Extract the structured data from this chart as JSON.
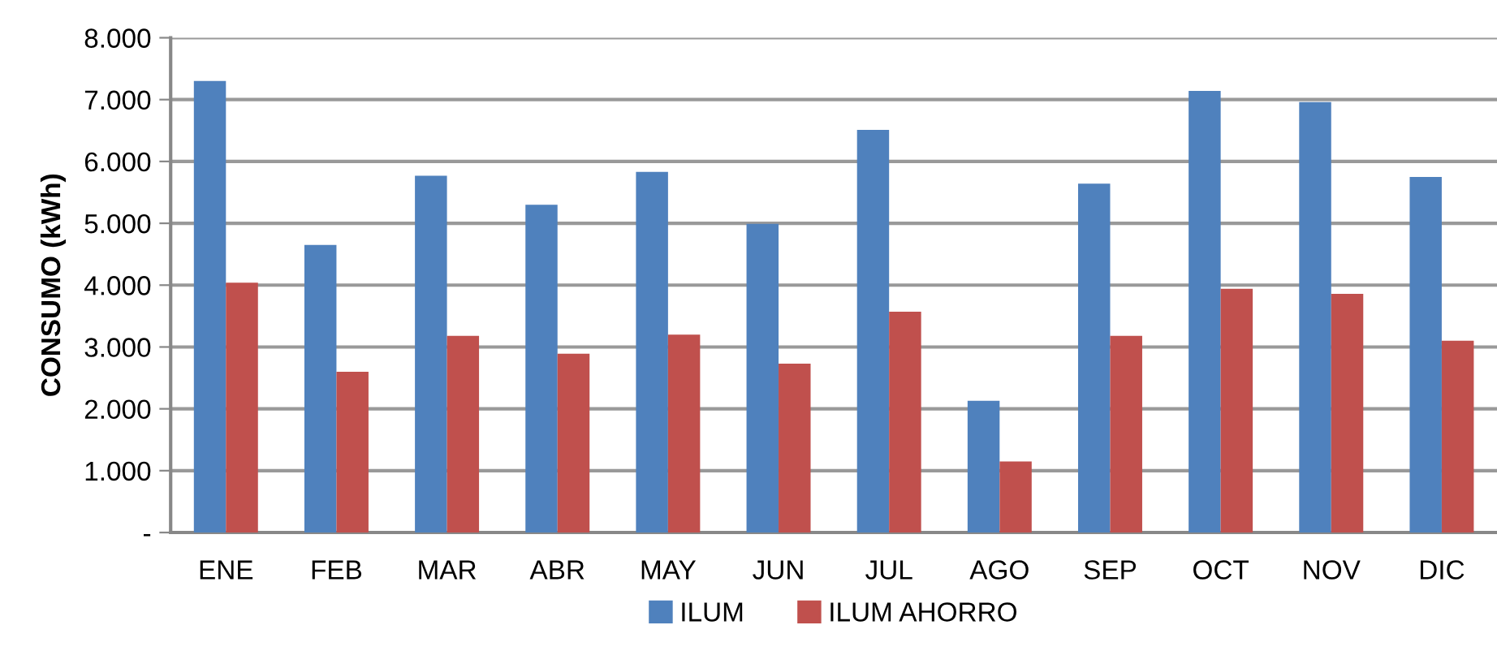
{
  "chart_data": {
    "type": "bar",
    "ylabel": "CONSUMO (kWh)",
    "categories": [
      "ENE",
      "FEB",
      "MAR",
      "ABR",
      "MAY",
      "JUN",
      "JUL",
      "AGO",
      "SEP",
      "OCT",
      "NOV",
      "DIC"
    ],
    "series": [
      {
        "name": "ILUM",
        "color": "#4f81bd",
        "values": [
          7300,
          4650,
          5770,
          5300,
          5830,
          4990,
          6510,
          2130,
          5640,
          7140,
          6960,
          5750
        ]
      },
      {
        "name": "ILUM AHORRO",
        "color": "#c0504d",
        "values": [
          4040,
          2600,
          3180,
          2890,
          3200,
          2730,
          3570,
          1150,
          3180,
          3940,
          3860,
          3100
        ]
      }
    ],
    "ylim": [
      0,
      8000
    ],
    "yticks": [
      {
        "value": 0,
        "label": "-"
      },
      {
        "value": 1000,
        "label": "1.000"
      },
      {
        "value": 2000,
        "label": "2.000"
      },
      {
        "value": 3000,
        "label": "3.000"
      },
      {
        "value": 4000,
        "label": "4.000"
      },
      {
        "value": 5000,
        "label": "5.000"
      },
      {
        "value": 6000,
        "label": "6.000"
      },
      {
        "value": 7000,
        "label": "7.000"
      },
      {
        "value": 8000,
        "label": "8.000"
      }
    ],
    "grid": "y",
    "legend": "bottom"
  }
}
